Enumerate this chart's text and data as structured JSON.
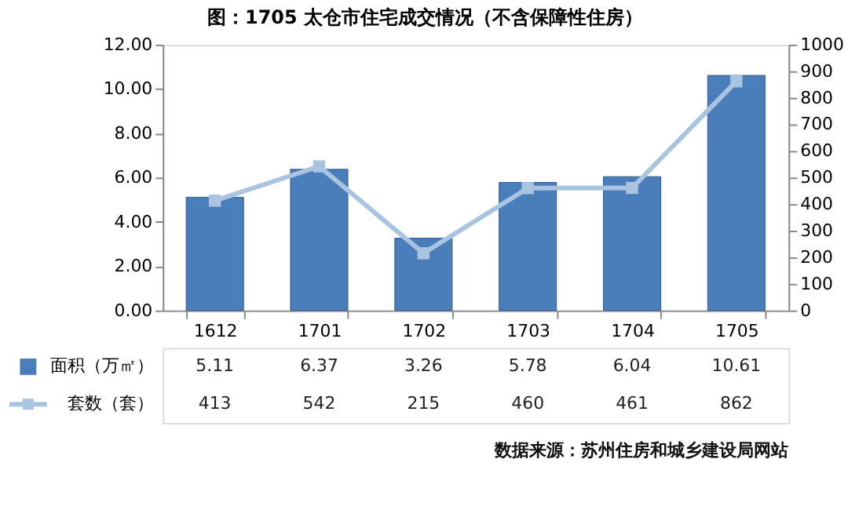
{
  "chart_data": {
    "type": "bar",
    "title": "图：1705 太仓市住宅成交情况（不含保障性住房）",
    "categories": [
      "1612",
      "1701",
      "1702",
      "1703",
      "1704",
      "1705"
    ],
    "series": [
      {
        "name": "面积（万㎡）",
        "color": "#4a7ebb",
        "values": [
          5.11,
          6.37,
          3.26,
          5.78,
          6.04,
          10.61
        ]
      },
      {
        "name": "套数（套）",
        "type": "line",
        "axis": "y2",
        "color": "#a9c4e0",
        "marker": "square",
        "line_style": "solid",
        "values": [
          413,
          542,
          215,
          460,
          461,
          862
        ]
      }
    ],
    "ylim": [
      0,
      12
    ],
    "yticks": [
      {
        "value": 0,
        "label": "0.00"
      },
      {
        "value": 2,
        "label": "2.00"
      },
      {
        "value": 4,
        "label": "4.00"
      },
      {
        "value": 6,
        "label": "6.00"
      },
      {
        "value": 8,
        "label": "8.00"
      },
      {
        "value": 10,
        "label": "10.00"
      },
      {
        "value": 12,
        "label": "12.00"
      }
    ],
    "y2lim": [
      0,
      1000
    ],
    "y2ticks": [
      0,
      100,
      200,
      300,
      400,
      500,
      600,
      700,
      800,
      900,
      1000
    ],
    "data_labels": true,
    "grid": false,
    "legend": "bottom left",
    "annotations": [
      "数据来源：苏州住房和城乡建设局网站"
    ]
  }
}
